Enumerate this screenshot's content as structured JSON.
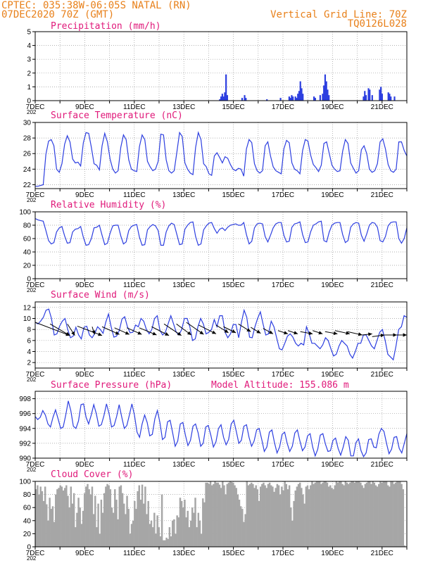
{
  "header": {
    "location": "CPTEC:  035:38W-06:05S  NATAL (RN)",
    "run": "07DEC2020 70Z (GMT)",
    "grid_note": "Vertical Grid Line: 70Z",
    "code": "TQ0126L028"
  },
  "colors": {
    "line": "#2d3fe0",
    "bar": "#2d3fe0",
    "cloud": "#a6a6a6",
    "title": "#e0197a",
    "header": "#e8801a",
    "grid": "#999999",
    "arrow": "#000000"
  },
  "x_tick_labels": [
    "7DEC",
    "9DEC",
    "11DEC",
    "13DEC",
    "15DEC",
    "17DEC",
    "19DEC",
    "21DEC"
  ],
  "x_sub_label": "202",
  "chart_data": [
    {
      "id": "precip",
      "type": "bar",
      "title": "Precipitation (mm/h)",
      "ylim": [
        0,
        5
      ],
      "yticks": [
        "0",
        "1",
        "2",
        "3",
        "4",
        "5"
      ],
      "x_range_days": [
        7,
        22
      ],
      "values": [
        [
          14.45,
          0.1
        ],
        [
          14.5,
          0.3
        ],
        [
          14.55,
          0.5
        ],
        [
          14.6,
          0.3
        ],
        [
          14.65,
          0.6
        ],
        [
          14.7,
          1.9
        ],
        [
          14.75,
          0.4
        ],
        [
          15.35,
          0.2
        ],
        [
          15.45,
          0.4
        ],
        [
          15.5,
          0.2
        ],
        [
          16.35,
          0.1
        ],
        [
          16.9,
          0.2
        ],
        [
          17.25,
          0.3
        ],
        [
          17.3,
          0.2
        ],
        [
          17.35,
          0.4
        ],
        [
          17.4,
          0.3
        ],
        [
          17.5,
          0.3
        ],
        [
          17.55,
          0.2
        ],
        [
          17.6,
          0.5
        ],
        [
          17.65,
          0.7
        ],
        [
          17.7,
          1.4
        ],
        [
          17.75,
          0.9
        ],
        [
          17.8,
          0.5
        ],
        [
          18.25,
          0.3
        ],
        [
          18.3,
          0.2
        ],
        [
          18.5,
          0.4
        ],
        [
          18.6,
          0.5
        ],
        [
          18.65,
          1.1
        ],
        [
          18.7,
          1.9
        ],
        [
          18.75,
          1.4
        ],
        [
          18.8,
          0.8
        ],
        [
          18.85,
          0.4
        ],
        [
          20.25,
          0.3
        ],
        [
          20.3,
          0.7
        ],
        [
          20.35,
          0.4
        ],
        [
          20.45,
          0.9
        ],
        [
          20.5,
          0.8
        ],
        [
          20.6,
          0.4
        ],
        [
          20.9,
          0.8
        ],
        [
          20.95,
          1.0
        ],
        [
          21.0,
          0.5
        ],
        [
          21.25,
          0.6
        ],
        [
          21.3,
          0.5
        ],
        [
          21.35,
          0.3
        ],
        [
          21.5,
          0.3
        ]
      ]
    },
    {
      "id": "temp",
      "type": "line",
      "title": "Surface Temperature (nC)",
      "ylim": [
        21.5,
        30
      ],
      "yticks": [
        "22",
        "24",
        "26",
        "28",
        "30"
      ],
      "x_range_days": [
        7,
        22
      ],
      "values": [
        21.8,
        21.8,
        21.9,
        22.0,
        25.9,
        27.6,
        27.8,
        27.0,
        24.0,
        23.6,
        24.7,
        27.2,
        28.3,
        27.5,
        25.3,
        24.8,
        24.9,
        24.4,
        27.4,
        28.7,
        28.6,
        26.8,
        24.7,
        24.5,
        23.9,
        27.0,
        28.6,
        27.5,
        25.3,
        24.0,
        23.5,
        23.8,
        26.8,
        28.4,
        27.8,
        25.2,
        24.0,
        23.8,
        23.7,
        26.9,
        28.4,
        27.8,
        25.0,
        24.3,
        23.8,
        24.0,
        25.0,
        28.5,
        28.4,
        25.2,
        23.8,
        23.5,
        23.8,
        26.2,
        28.7,
        28.2,
        24.8,
        24.0,
        23.5,
        23.3,
        26.8,
        28.7,
        27.8,
        24.7,
        24.3,
        23.4,
        23.2,
        25.7,
        26.1,
        25.5,
        24.8,
        25.6,
        25.4,
        24.6,
        24.0,
        23.8,
        24.1,
        24.0,
        23.1,
        26.6,
        27.8,
        27.4,
        24.7,
        23.8,
        23.5,
        23.8,
        27.0,
        27.5,
        25.7,
        24.3,
        23.8,
        23.6,
        23.4,
        26.6,
        27.7,
        27.4,
        24.8,
        24.0,
        23.8,
        23.4,
        26.4,
        27.8,
        27.6,
        25.8,
        24.6,
        24.2,
        23.7,
        24.5,
        27.3,
        27.5,
        26.0,
        24.5,
        24.0,
        23.7,
        23.8,
        26.3,
        27.8,
        27.3,
        24.8,
        24.1,
        23.5,
        23.8,
        26.5,
        27.0,
        26.0,
        24.0,
        23.6,
        23.8,
        24.7,
        27.5,
        27.9,
        26.6,
        24.6,
        23.8,
        23.6,
        24.0,
        27.5,
        27.5,
        26.4,
        25.7
      ]
    },
    {
      "id": "rh",
      "type": "line",
      "title": "Relative Humidity (%)",
      "ylim": [
        0,
        100
      ],
      "yticks": [
        "0",
        "20",
        "40",
        "60",
        "80",
        "100"
      ],
      "x_range_days": [
        7,
        22
      ],
      "values": [
        90,
        88,
        87,
        86,
        72,
        57,
        52,
        54,
        70,
        76,
        78,
        64,
        53,
        54,
        70,
        74,
        75,
        78,
        62,
        50,
        51,
        60,
        76,
        77,
        80,
        65,
        51,
        53,
        68,
        79,
        80,
        80,
        64,
        52,
        55,
        72,
        78,
        80,
        81,
        62,
        50,
        51,
        73,
        78,
        81,
        79,
        72,
        50,
        50,
        70,
        79,
        83,
        81,
        66,
        51,
        52,
        74,
        80,
        84,
        85,
        63,
        50,
        52,
        73,
        79,
        83,
        84,
        75,
        68,
        74,
        76,
        72,
        77,
        80,
        81,
        82,
        80,
        80,
        84,
        66,
        52,
        56,
        76,
        82,
        83,
        82,
        63,
        55,
        65,
        76,
        82,
        84,
        84,
        65,
        55,
        56,
        77,
        82,
        83,
        85,
        66,
        54,
        55,
        70,
        80,
        82,
        85,
        86,
        57,
        55,
        70,
        80,
        83,
        84,
        84,
        66,
        54,
        57,
        77,
        82,
        84,
        83,
        65,
        56,
        67,
        80,
        84,
        83,
        77,
        57,
        55,
        63,
        79,
        84,
        85,
        85,
        60,
        53,
        60,
        76
      ]
    },
    {
      "id": "wind",
      "type": "line",
      "title": "Surface Wind (m/s)",
      "ylim": [
        1,
        13
      ],
      "yticks": [
        "2",
        "4",
        "6",
        "8",
        "10",
        "12"
      ],
      "x_range_days": [
        7,
        22
      ],
      "values": [
        9.3,
        9.0,
        9.5,
        10.2,
        11.5,
        11.7,
        10.0,
        7.0,
        7.2,
        8.6,
        9.5,
        10.0,
        8.0,
        6.5,
        6.8,
        8.4,
        7.0,
        6.3,
        8.4,
        8.6,
        7.0,
        6.5,
        7.3,
        8.5,
        8.0,
        7.3,
        9.3,
        10.8,
        8.5,
        6.6,
        6.8,
        7.8,
        9.9,
        10.3,
        8.5,
        7.4,
        7.5,
        8.8,
        8.5,
        10.0,
        9.5,
        8.0,
        7.2,
        8.0,
        10.0,
        10.5,
        7.8,
        7.0,
        7.5,
        9.0,
        10.5,
        9.0,
        7.5,
        7.0,
        8.0,
        10.0,
        10.0,
        8.5,
        6.0,
        6.3,
        8.5,
        10.0,
        9.0,
        7.2,
        7.5,
        8.0,
        9.8,
        8.5,
        10.5,
        10.5,
        7.5,
        6.5,
        7.2,
        8.9,
        8.9,
        6.5,
        9.2,
        11.5,
        10.2,
        6.6,
        6.5,
        8.5,
        10.0,
        11.2,
        9.0,
        7.0,
        7.2,
        9.5,
        8.5,
        6.5,
        4.5,
        4.3,
        5.5,
        6.8,
        7.2,
        6.6,
        5.5,
        5.0,
        5.5,
        5.2,
        8.5,
        7.2,
        5.5,
        5.5,
        5.0,
        4.5,
        5.2,
        6.5,
        6.0,
        4.5,
        3.2,
        3.5,
        5.0,
        6.0,
        5.5,
        5.0,
        3.5,
        2.8,
        4.0,
        5.5,
        5.5,
        7.0,
        7.0,
        6.0,
        5.0,
        4.5,
        6.0,
        7.5,
        8.0,
        6.0,
        3.5,
        3.0,
        2.5,
        5.0,
        8.0,
        8.5,
        10.5,
        10.2
      ],
      "barbs": [
        [
          7.0,
          9.3,
          8.4,
          6.9
        ],
        [
          7.6,
          9.0,
          8.4,
          6.9
        ],
        [
          8.3,
          9.0,
          8.6,
          6.9
        ],
        [
          8.7,
          8.6,
          9.7,
          6.9
        ],
        [
          9.3,
          8.5,
          9.4,
          7.1
        ],
        [
          9.7,
          8.5,
          10.4,
          7.1
        ],
        [
          10.2,
          8.3,
          10.8,
          7.1
        ],
        [
          10.7,
          8.3,
          11.3,
          7.1
        ],
        [
          11.2,
          8.3,
          11.9,
          7.0
        ],
        [
          11.7,
          8.5,
          12.4,
          6.9
        ],
        [
          12.2,
          9.0,
          12.9,
          6.9
        ],
        [
          12.7,
          9.0,
          13.3,
          7.0
        ],
        [
          13.1,
          9.3,
          13.8,
          7.1
        ],
        [
          13.6,
          8.8,
          14.3,
          7.2
        ],
        [
          14.3,
          8.8,
          14.8,
          7.4
        ],
        [
          14.6,
          8.5,
          15.1,
          7.4
        ],
        [
          15.2,
          9.0,
          15.7,
          7.6
        ],
        [
          15.7,
          8.4,
          16.1,
          7.3
        ],
        [
          16.2,
          8.2,
          16.6,
          7.2
        ],
        [
          16.8,
          7.8,
          17.2,
          7.2
        ],
        [
          17.2,
          7.8,
          17.6,
          7.2
        ],
        [
          17.7,
          7.6,
          18.2,
          7.2
        ],
        [
          18.2,
          7.8,
          18.6,
          7.2
        ],
        [
          18.7,
          7.6,
          19.2,
          7.2
        ],
        [
          19.1,
          7.8,
          19.7,
          7.2
        ],
        [
          19.6,
          7.6,
          20.2,
          7.0
        ],
        [
          20.2,
          7.0,
          20.6,
          7.2
        ],
        [
          20.6,
          6.7,
          21.1,
          7.0
        ],
        [
          21.1,
          7.0,
          21.6,
          7.0
        ],
        [
          21.6,
          7.0,
          22.0,
          7.0
        ]
      ]
    },
    {
      "id": "pres",
      "type": "line",
      "title": "Surface Pressure (hPa)",
      "annotation": "Model Altitude: 155.086 m",
      "ylim": [
        990,
        999
      ],
      "yticks": [
        "990",
        "992",
        "994",
        "996",
        "998"
      ],
      "x_range_days": [
        7,
        22
      ],
      "values": [
        995.6,
        995.2,
        995.5,
        996.4,
        995.8,
        994.6,
        994.2,
        995.5,
        996.5,
        995.3,
        994.0,
        994.2,
        995.8,
        997.7,
        996.4,
        994.3,
        994.0,
        995.0,
        997.2,
        997.3,
        995.5,
        994.6,
        995.8,
        997.2,
        996.0,
        994.3,
        994.5,
        995.7,
        997.3,
        996.0,
        994.2,
        994.4,
        995.6,
        997.2,
        995.5,
        994.0,
        994.4,
        995.8,
        997.3,
        995.8,
        993.5,
        992.8,
        994.6,
        995.8,
        994.8,
        993.0,
        993.2,
        995.3,
        996.4,
        994.8,
        992.5,
        992.8,
        994.9,
        995.1,
        993.4,
        991.6,
        992.3,
        994.6,
        994.8,
        993.1,
        991.7,
        992.4,
        994.3,
        994.6,
        993.4,
        991.6,
        992.0,
        994.2,
        994.4,
        993.1,
        991.5,
        992.2,
        994.0,
        994.5,
        992.8,
        991.8,
        992.5,
        994.6,
        995.1,
        993.6,
        992.0,
        992.4,
        994.3,
        994.5,
        992.8,
        991.6,
        992.3,
        993.8,
        994.0,
        992.5,
        990.9,
        991.5,
        993.5,
        993.8,
        992.1,
        990.7,
        991.5,
        993.2,
        993.5,
        992.0,
        990.9,
        991.6,
        993.4,
        993.8,
        992.3,
        991.0,
        991.5,
        993.0,
        993.3,
        991.5,
        990.3,
        991.2,
        993.1,
        993.3,
        991.9,
        990.9,
        991.0,
        992.4,
        992.7,
        991.3,
        990.4,
        991.5,
        992.9,
        992.4,
        990.3,
        990.3,
        992.1,
        992.6,
        991.0,
        990.2,
        990.7,
        992.5,
        992.6,
        991.5,
        991.4,
        993.2,
        994.0,
        993.6,
        992.0,
        990.6,
        991.2,
        992.8,
        992.9,
        991.3,
        990.7,
        992.0,
        993.3
      ]
    },
    {
      "id": "cloud",
      "type": "area",
      "title": "Cloud Cover (%)",
      "ylim": [
        0,
        100
      ],
      "yticks": [
        "0",
        "20",
        "40",
        "60",
        "80",
        "100"
      ],
      "x_range_days": [
        7,
        22
      ],
      "values": [
        88,
        94,
        80,
        92,
        85,
        70,
        92,
        65,
        40,
        75,
        58,
        62,
        38,
        80,
        88,
        90,
        94,
        92,
        86,
        90,
        94,
        78,
        60,
        92,
        66,
        82,
        30,
        52,
        75,
        60,
        35,
        55,
        82,
        92,
        96,
        88,
        80,
        92,
        50,
        78,
        30,
        66,
        20,
        72,
        52,
        82,
        92,
        96,
        94,
        88,
        60,
        52,
        88,
        72,
        42,
        92,
        94,
        82,
        66,
        50,
        78,
        58,
        20,
        35,
        40,
        70,
        58,
        85,
        94,
        72,
        95,
        66,
        92,
        50,
        70,
        35,
        40,
        30,
        52,
        20,
        48,
        30,
        16,
        80,
        10,
        10,
        14,
        12,
        30,
        16,
        40,
        42,
        20,
        48,
        45,
        75,
        70,
        60,
        72,
        45,
        55,
        30,
        40,
        60,
        52,
        75,
        30,
        52,
        40,
        20,
        74,
        68,
        98,
        98,
        96,
        100,
        94,
        96,
        100,
        98,
        98,
        95,
        90,
        100,
        94,
        80,
        96,
        98,
        100,
        99,
        98,
        94,
        90,
        80,
        72,
        62,
        58,
        38,
        50,
        100,
        94,
        96,
        98,
        96,
        90,
        94,
        88,
        70,
        92,
        96,
        98,
        94,
        90,
        96,
        98,
        94,
        92,
        84,
        90,
        96,
        94,
        80,
        92,
        86,
        100,
        96,
        88,
        94,
        60,
        40,
        70,
        86,
        92,
        96,
        98,
        90,
        80,
        66,
        92,
        94,
        88,
        94,
        100,
        96,
        98,
        100,
        100,
        100,
        96,
        98,
        100,
        100,
        98,
        92,
        94,
        90,
        88,
        94,
        100,
        98,
        100,
        100,
        96,
        94,
        100,
        98,
        96,
        98,
        100,
        100,
        98,
        100,
        100,
        100,
        98,
        94,
        90,
        96,
        98,
        100,
        100,
        96,
        100,
        98,
        94,
        92,
        96,
        100,
        98,
        100,
        100,
        100,
        94,
        92,
        100,
        100,
        96,
        98,
        100,
        100,
        100,
        96,
        88,
        2,
        0
      ]
    }
  ]
}
